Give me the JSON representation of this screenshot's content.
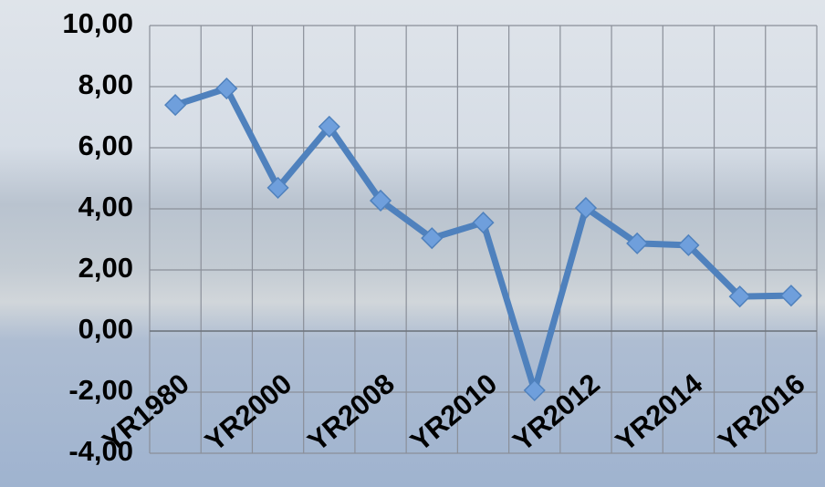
{
  "chart_data": {
    "type": "line",
    "categories": [
      "YR1980",
      null,
      "YR2000",
      null,
      "YR2008",
      null,
      "YR2010",
      null,
      "YR2012",
      null,
      "YR2014",
      null,
      "YR2016"
    ],
    "values": [
      7.4,
      7.94,
      4.69,
      6.69,
      4.27,
      3.04,
      3.55,
      -1.94,
      4.03,
      2.87,
      2.81,
      1.13,
      1.16
    ],
    "color": "#4f81bd",
    "marker_color": "#6f9fdc",
    "ylim": [
      -4,
      10
    ],
    "yticks": [
      {
        "value": -4,
        "label": "-4,00"
      },
      {
        "value": -2,
        "label": "-2,00"
      },
      {
        "value": 0,
        "label": "0,00"
      },
      {
        "value": 2,
        "label": "2,00"
      },
      {
        "value": 4,
        "label": "4,00"
      },
      {
        "value": 6,
        "label": "6,00"
      },
      {
        "value": 8,
        "label": "8,00"
      },
      {
        "value": 10,
        "label": "10,00"
      }
    ],
    "grid": true
  }
}
